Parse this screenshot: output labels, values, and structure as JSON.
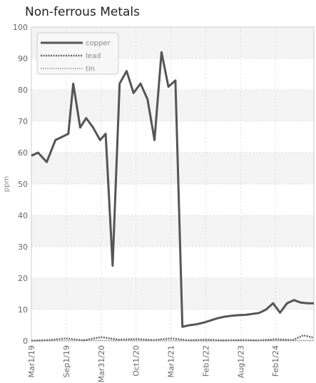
{
  "chart_data": {
    "type": "line",
    "title": "Non-ferrous Metals",
    "ylabel": "ppm",
    "xlabel": "",
    "ylim": [
      0,
      100
    ],
    "y_ticks": [
      0,
      10,
      20,
      30,
      40,
      50,
      60,
      70,
      80,
      90,
      100
    ],
    "x_tick_labels": [
      "Mar1/19",
      "Sep1/19",
      "Mar31/20",
      "Oct1/20",
      "Mar1/21",
      "Feb1/22",
      "Aug1/23",
      "Feb1/24"
    ],
    "x_tick_positions": [
      0,
      1,
      2,
      3,
      4,
      5,
      6,
      7
    ],
    "x_range": [
      0,
      8.1
    ],
    "grid": true,
    "legend_position": "top-left",
    "series": [
      {
        "name": "copper",
        "color": "#555555",
        "style": "solid",
        "x": [
          0,
          0.19,
          0.44,
          0.69,
          1.06,
          1.2,
          1.4,
          1.57,
          1.77,
          1.97,
          2.13,
          2.33,
          2.53,
          2.73,
          2.93,
          3.13,
          3.33,
          3.53,
          3.73,
          3.93,
          4.13,
          4.33,
          4.53,
          4.73,
          4.93,
          5.13,
          5.33,
          5.53,
          5.73,
          5.93,
          6.13,
          6.33,
          6.53,
          6.73,
          6.93,
          7.13,
          7.33,
          7.53,
          7.73,
          7.93,
          8.1
        ],
        "values": [
          59,
          60,
          57,
          64,
          66,
          82,
          68,
          71,
          68,
          64,
          66,
          24,
          82,
          86,
          79,
          82,
          77,
          64,
          92,
          81,
          83,
          4.5,
          5,
          5.3,
          5.8,
          6.5,
          7.2,
          7.7,
          8,
          8.2,
          8.3,
          8.6,
          8.9,
          10,
          12,
          9,
          12,
          13,
          12.2,
          12,
          12
        ]
      },
      {
        "name": "lead",
        "color": "#666666",
        "style": "dashed",
        "x": [
          0,
          0.5,
          1,
          1.5,
          2,
          2.5,
          3,
          3.5,
          4,
          4.5,
          5,
          5.5,
          6,
          6.5,
          7,
          7.5,
          7.8,
          8.1
        ],
        "values": [
          0.1,
          0.3,
          0.8,
          0.2,
          1.2,
          0.4,
          0.6,
          0.3,
          0.8,
          0.2,
          0.4,
          0.2,
          0.3,
          0.2,
          0.5,
          0.3,
          1.8,
          1.0
        ]
      },
      {
        "name": "tin",
        "color": "#999999",
        "style": "dotted",
        "x": [
          0,
          1,
          2,
          3,
          4,
          5,
          6,
          7,
          8.1
        ],
        "values": [
          0,
          0.1,
          0.2,
          0.1,
          0.1,
          0,
          0.1,
          0.1,
          0.2
        ]
      }
    ]
  }
}
